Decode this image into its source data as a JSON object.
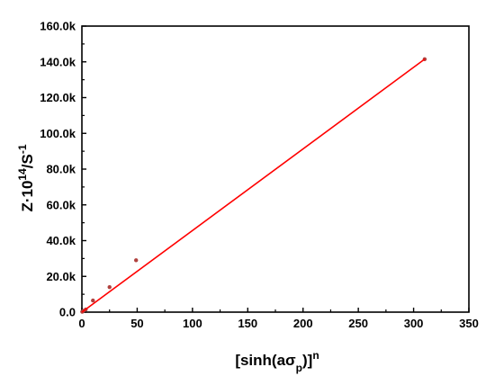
{
  "chart_data": {
    "type": "scatter",
    "title": "",
    "xlabel": {
      "base": "[sinh(aσ",
      "sub": "p",
      "close": ")]",
      "sup": "n"
    },
    "ylabel": {
      "base": "Z·10",
      "sup1": "14",
      "mid": "/S",
      "sup2": "-1"
    },
    "xlim": [
      0,
      350
    ],
    "ylim": [
      0,
      160000
    ],
    "x_ticks": [
      0,
      50,
      100,
      150,
      200,
      250,
      300,
      350
    ],
    "x_tick_labels": [
      "0",
      "50",
      "100",
      "150",
      "200",
      "250",
      "300",
      "350"
    ],
    "y_ticks": [
      0,
      20000,
      40000,
      60000,
      80000,
      100000,
      120000,
      140000,
      160000
    ],
    "y_tick_labels": [
      "0.0",
      "20.0k",
      "40.0k",
      "60.0k",
      "80.0k",
      "100.0k",
      "120.0k",
      "140.0k",
      "160.0k"
    ],
    "grid": false,
    "series": [
      {
        "kind": "points",
        "color": "#b0413e",
        "x": [
          0.3,
          1.5,
          3.5,
          10,
          25,
          49,
          310
        ],
        "y": [
          200,
          800,
          1500,
          6500,
          14000,
          29000,
          141500
        ]
      },
      {
        "kind": "fit-line",
        "color": "#ff0000",
        "x": [
          0,
          310
        ],
        "y": [
          0,
          141500
        ]
      }
    ]
  }
}
